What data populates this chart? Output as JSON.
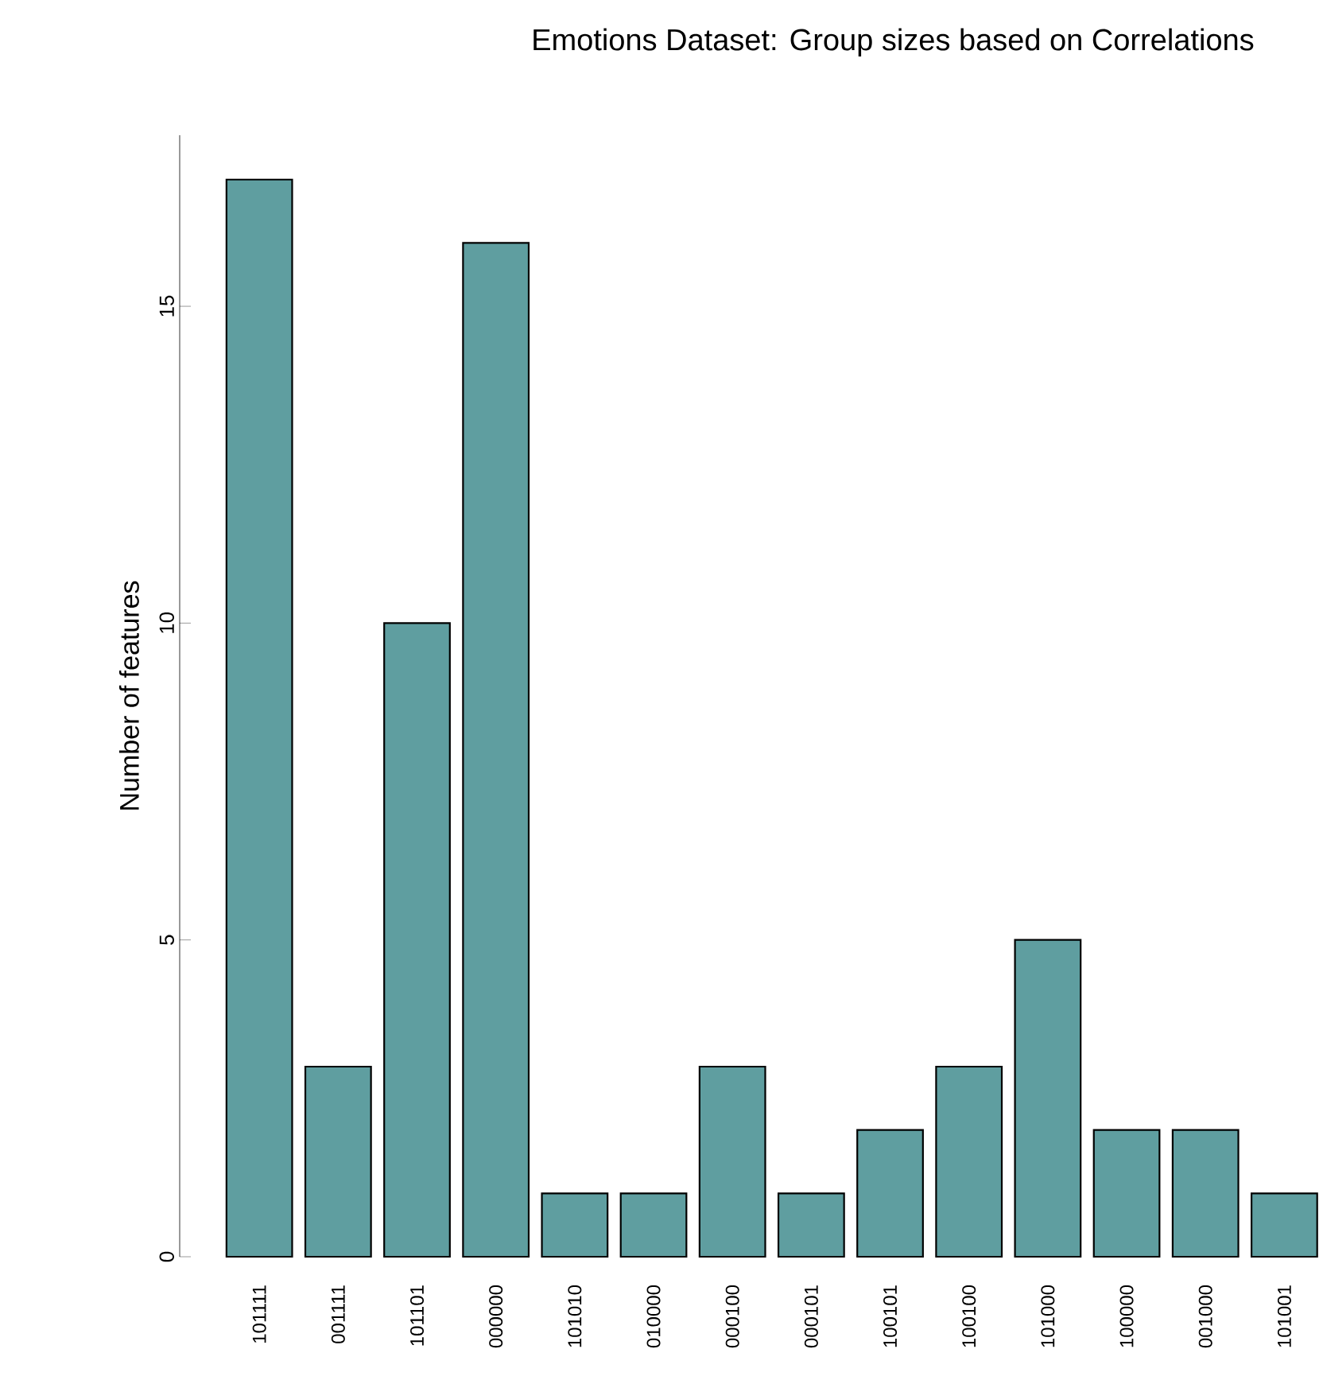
{
  "chart_data": {
    "type": "bar",
    "title": "Emotions Dataset: Group sizes based on Correlations",
    "ylabel": "Number of features",
    "categories": [
      "101111",
      "001111",
      "101101",
      "000000",
      "101010",
      "010000",
      "000100",
      "000101",
      "100101",
      "100100",
      "101000",
      "100000",
      "001000",
      "101001"
    ],
    "values": [
      17,
      3,
      10,
      16,
      1,
      1,
      3,
      1,
      2,
      3,
      5,
      2,
      2,
      1
    ],
    "color": "#5f9ea0",
    "ylim": [
      0,
      17.7
    ],
    "yticks": [
      0,
      5,
      10,
      15
    ]
  }
}
